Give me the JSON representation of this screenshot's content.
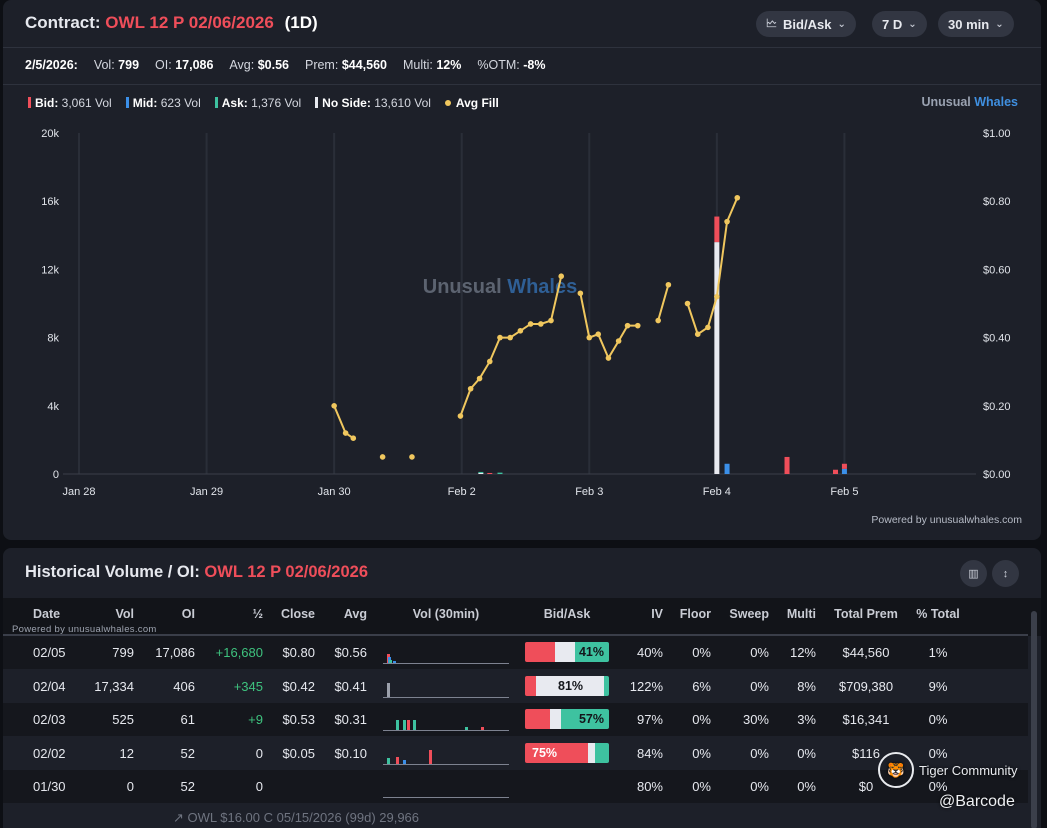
{
  "contract_panel": {
    "title_label": "Contract:",
    "contract_name": "OWL 12 P 02/06/2026",
    "timeframe": "(1D)",
    "controls": {
      "bid_ask": "Bid/Ask",
      "range": "7 D",
      "interval": "30 min"
    },
    "stats": {
      "date": "2/5/2026:",
      "vol_label": "Vol:",
      "vol_value": "799",
      "oi_label": "OI:",
      "oi_value": "17,086",
      "avg_label": "Avg:",
      "avg_value": "$0.56",
      "prem_label": "Prem:",
      "prem_value": "$44,560",
      "multi_label": "Multi:",
      "multi_value": "12%",
      "otm_label": "%OTM:",
      "otm_value": "-8%"
    },
    "legend": {
      "bid_label": "Bid:",
      "bid_value": "3,061 Vol",
      "mid_label": "Mid:",
      "mid_value": "623 Vol",
      "ask_label": "Ask:",
      "ask_value": "1,376 Vol",
      "noside_label": "No Side:",
      "noside_value": "13,610 Vol",
      "avgfill_label": "Avg Fill"
    },
    "brand_part1": "Unusual",
    "brand_part2": "Whales",
    "watermark_part1": "Unusual",
    "watermark_part2": "Whales",
    "powered_by": "Powered by unusualwhales.com"
  },
  "colors": {
    "bid": "#ef4e5a",
    "mid": "#3b8fe8",
    "ask": "#3ec2a0",
    "no_side": "#e8eaf0",
    "avg_fill": "#f0c75e",
    "positive": "#3ec27e"
  },
  "chart_data": {
    "type": "bar+line",
    "x_tick_labels": [
      "Jan 28",
      "Jan 29",
      "Jan 30",
      "Feb 2",
      "Feb 3",
      "Feb 4",
      "Feb 5"
    ],
    "y_left_ticks": [
      "0",
      "4k",
      "8k",
      "12k",
      "16k",
      "20k"
    ],
    "y_left_range": [
      0,
      20000
    ],
    "y_right_ticks": [
      "$0.00",
      "$0.20",
      "$0.40",
      "$0.60",
      "$0.80",
      "$1.00"
    ],
    "y_right_range": [
      0,
      1.0
    ],
    "grid": true,
    "volume_bars": [
      {
        "x": 3.15,
        "bid": 0,
        "mid": 0,
        "ask": 60,
        "no_side": 60
      },
      {
        "x": 3.22,
        "bid": 60,
        "mid": 0,
        "ask": 0,
        "no_side": 0
      },
      {
        "x": 3.3,
        "bid": 0,
        "mid": 0,
        "ask": 80,
        "no_side": 0
      },
      {
        "x": 5.0,
        "bid": 1500,
        "mid": 0,
        "ask": 0,
        "no_side": 13600
      },
      {
        "x": 5.08,
        "bid": 0,
        "mid": 600,
        "ask": 0,
        "no_side": 0
      },
      {
        "x": 5.55,
        "bid": 1000,
        "mid": 0,
        "ask": 0,
        "no_side": 0
      },
      {
        "x": 5.93,
        "bid": 250,
        "mid": 0,
        "ask": 0,
        "no_side": 0
      },
      {
        "x": 6.0,
        "bid": 300,
        "mid": 300,
        "ask": 0,
        "no_side": 0
      }
    ],
    "avg_fill_segments": [
      [
        [
          2.0,
          0.2
        ],
        [
          2.09,
          0.12
        ],
        [
          2.15,
          0.105
        ]
      ],
      [
        [
          2.38,
          0.05
        ]
      ],
      [
        [
          2.61,
          0.05
        ]
      ],
      [
        [
          2.99,
          0.17
        ],
        [
          3.07,
          0.25
        ],
        [
          3.14,
          0.28
        ],
        [
          3.22,
          0.33
        ],
        [
          3.3,
          0.4
        ],
        [
          3.38,
          0.4
        ],
        [
          3.46,
          0.42
        ],
        [
          3.54,
          0.44
        ],
        [
          3.62,
          0.44
        ],
        [
          3.7,
          0.45
        ],
        [
          3.78,
          0.58
        ]
      ],
      [
        [
          3.93,
          0.53
        ],
        [
          4.0,
          0.4
        ],
        [
          4.07,
          0.41
        ],
        [
          4.15,
          0.34
        ],
        [
          4.23,
          0.39
        ],
        [
          4.3,
          0.435
        ],
        [
          4.38,
          0.435
        ]
      ],
      [
        [
          4.54,
          0.45
        ],
        [
          4.62,
          0.555
        ]
      ],
      [
        [
          4.77,
          0.5
        ],
        [
          4.85,
          0.41
        ],
        [
          4.93,
          0.43
        ],
        [
          5.0,
          0.52
        ],
        [
          5.08,
          0.74
        ],
        [
          5.16,
          0.81
        ]
      ]
    ]
  },
  "history": {
    "title_label": "Historical Volume / OI:",
    "contract_name": "OWL 12 P 02/06/2026",
    "powered_small": "Powered by unusualwhales.com",
    "columns": [
      "Date",
      "Vol",
      "OI",
      "½",
      "Close",
      "Avg",
      "Vol (30min)",
      "Bid/Ask",
      "IV",
      "Floor",
      "Sweep",
      "Multi",
      "Total Prem",
      "% Total"
    ],
    "rows": [
      {
        "date": "02/05",
        "vol": "799",
        "oi": "17,086",
        "chg": "+16,680",
        "close": "$0.80",
        "avg": "$0.56",
        "ba_label": "41%",
        "ba_label_side": "ask",
        "ba_bid": 0.36,
        "ba_mid": 0.23,
        "ba_ask": 0.41,
        "iv": "40%",
        "floor": "0%",
        "sweep": "0%",
        "multi": "12%",
        "prem": "$44,560",
        "pct": "1%",
        "mini": [
          [
            4,
            9,
            "#ef4e5a"
          ],
          [
            5,
            6,
            "#3b8fe8"
          ],
          [
            6,
            3,
            "#3ec2a0"
          ],
          [
            10,
            2,
            "#3b8fe8"
          ]
        ]
      },
      {
        "date": "02/04",
        "vol": "17,334",
        "oi": "406",
        "chg": "+345",
        "close": "$0.42",
        "avg": "$0.41",
        "ba_label": "81%",
        "ba_label_side": "mid",
        "ba_bid": 0.13,
        "ba_mid": 0.81,
        "ba_ask": 0.06,
        "iv": "122%",
        "floor": "6%",
        "sweep": "0%",
        "multi": "8%",
        "prem": "$709,380",
        "pct": "9%",
        "mini": [
          [
            4,
            14,
            "#9ba0ab"
          ]
        ]
      },
      {
        "date": "02/03",
        "vol": "525",
        "oi": "61",
        "chg": "+9",
        "close": "$0.53",
        "avg": "$0.31",
        "ba_label": "57%",
        "ba_label_side": "ask",
        "ba_bid": 0.3,
        "ba_mid": 0.13,
        "ba_ask": 0.57,
        "iv": "97%",
        "floor": "0%",
        "sweep": "30%",
        "multi": "3%",
        "prem": "$16,341",
        "pct": "0%",
        "mini": [
          [
            13,
            10,
            "#3ec2a0"
          ],
          [
            20,
            10,
            "#3ec2a0"
          ],
          [
            24,
            10,
            "#ef4e5a"
          ],
          [
            30,
            10,
            "#3ec2a0"
          ],
          [
            82,
            3,
            "#3ec2a0"
          ],
          [
            98,
            3,
            "#ef4e5a"
          ]
        ]
      },
      {
        "date": "02/02",
        "vol": "12",
        "oi": "52",
        "chg": "0",
        "close": "$0.05",
        "avg": "$0.10",
        "ba_label": "75%",
        "ba_label_side": "bid",
        "ba_bid": 0.75,
        "ba_mid": 0.08,
        "ba_ask": 0.17,
        "iv": "84%",
        "floor": "0%",
        "sweep": "0%",
        "multi": "0%",
        "prem": "$116",
        "pct": "0%",
        "mini": [
          [
            4,
            6,
            "#3ec2a0"
          ],
          [
            13,
            7,
            "#ef4e5a"
          ],
          [
            20,
            4,
            "#3b8fe8"
          ],
          [
            46,
            14,
            "#ef4e5a"
          ]
        ]
      },
      {
        "date": "01/30",
        "vol": "0",
        "oi": "52",
        "chg": "0",
        "close": "",
        "avg": "",
        "ba_label": "",
        "ba_label_side": "",
        "ba_bid": 0,
        "ba_mid": 0,
        "ba_ask": 0,
        "iv": "80%",
        "floor": "0%",
        "sweep": "0%",
        "multi": "0%",
        "prem": "$0",
        "pct": "0%",
        "mini": []
      }
    ],
    "footer_text": "↗ OWL  $16.00 C 05/15/2026 (99d)          29,966"
  },
  "overlay": {
    "tiger_label": "Tiger Community",
    "barcode_label": "@Barcode"
  }
}
